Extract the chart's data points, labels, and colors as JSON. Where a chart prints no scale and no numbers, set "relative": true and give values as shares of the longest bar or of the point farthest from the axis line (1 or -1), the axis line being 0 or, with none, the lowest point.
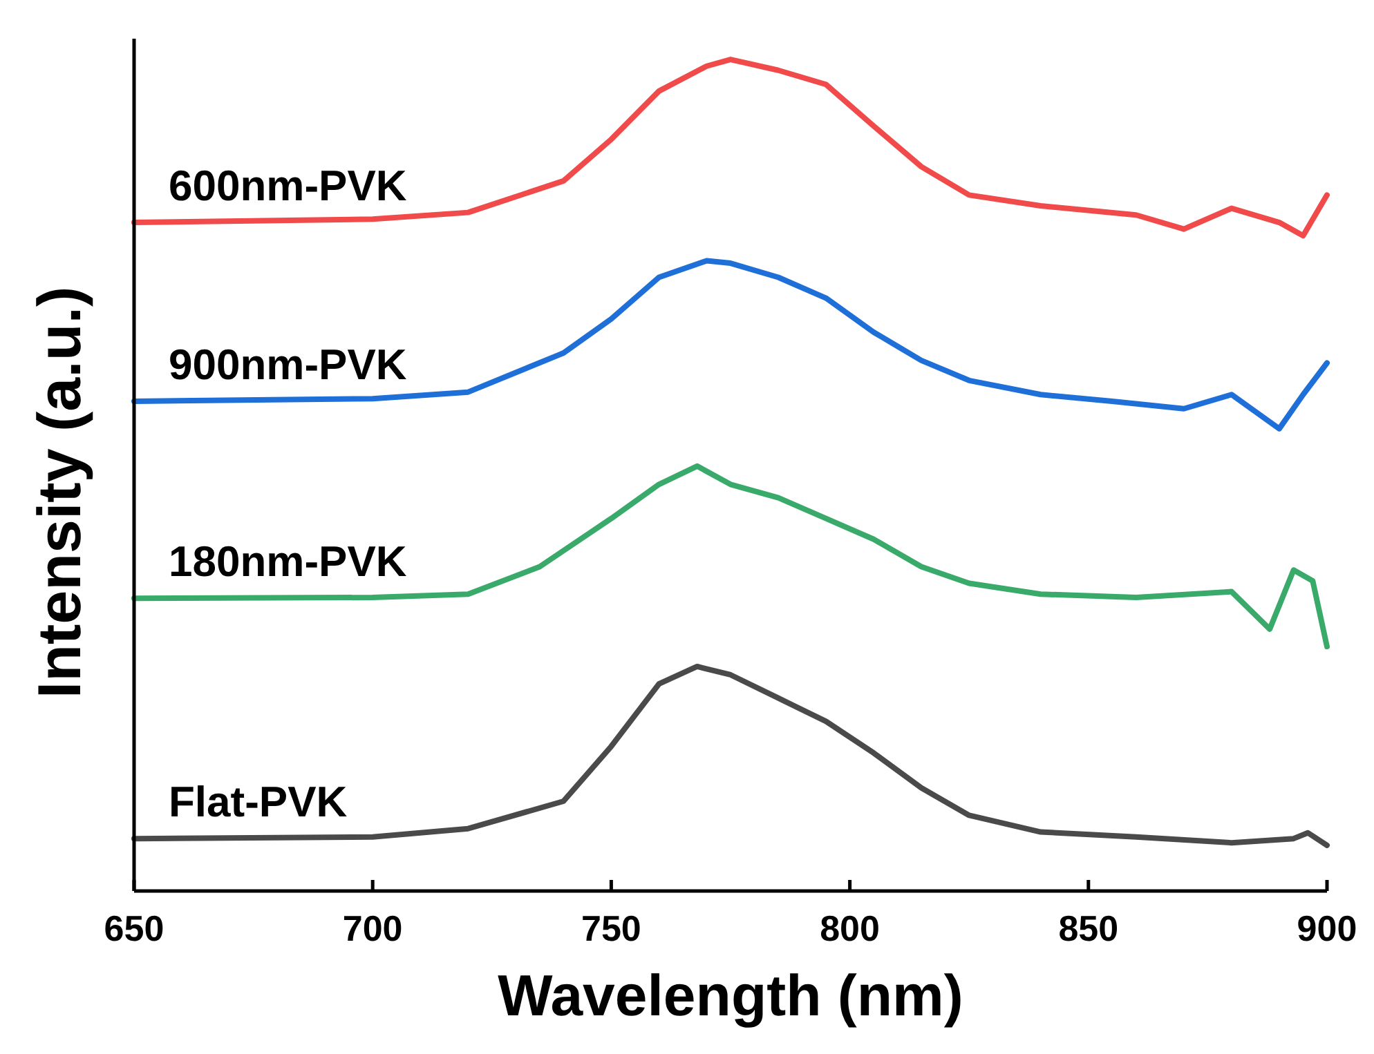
{
  "chart_data": {
    "type": "line",
    "relative": true,
    "xlabel": "Wavelength (nm)",
    "ylabel": "Intensity (a.u.)",
    "xlim": [
      650,
      900
    ],
    "xticks": [
      650,
      700,
      750,
      800,
      850,
      900
    ],
    "grid": false,
    "marker": "none",
    "line_style": "solid",
    "series": [
      {
        "name": "600nm-PVK",
        "color": "#f04a4a",
        "x": [
          650,
          700,
          720,
          740,
          750,
          760,
          770,
          775,
          785,
          795,
          805,
          815,
          825,
          840,
          860,
          870,
          880,
          890,
          895,
          900
        ],
        "values": [
          0.804,
          0.808,
          0.816,
          0.854,
          0.904,
          0.962,
          0.992,
          1.0,
          0.987,
          0.97,
          0.92,
          0.871,
          0.837,
          0.824,
          0.813,
          0.796,
          0.821,
          0.804,
          0.788,
          0.837
        ]
      },
      {
        "name": "900nm-PVK",
        "color": "#1f6fd8",
        "x": [
          650,
          700,
          720,
          740,
          750,
          760,
          770,
          775,
          785,
          795,
          805,
          815,
          825,
          840,
          855,
          870,
          880,
          890,
          895,
          900
        ],
        "values": [
          0.589,
          0.592,
          0.6,
          0.647,
          0.688,
          0.738,
          0.758,
          0.755,
          0.738,
          0.713,
          0.672,
          0.638,
          0.614,
          0.597,
          0.589,
          0.58,
          0.597,
          0.556,
          0.597,
          0.635
        ]
      },
      {
        "name": "180nm-PVK",
        "color": "#3aaa6a",
        "x": [
          650,
          700,
          720,
          735,
          750,
          760,
          768,
          775,
          785,
          795,
          805,
          815,
          825,
          840,
          860,
          880,
          888,
          893,
          897,
          900
        ],
        "values": [
          0.352,
          0.353,
          0.357,
          0.39,
          0.448,
          0.489,
          0.511,
          0.489,
          0.473,
          0.448,
          0.423,
          0.39,
          0.37,
          0.357,
          0.353,
          0.36,
          0.315,
          0.386,
          0.373,
          0.294
        ]
      },
      {
        "name": "Flat-PVK",
        "color": "#4a4a4a",
        "x": [
          650,
          700,
          720,
          740,
          750,
          760,
          768,
          775,
          785,
          795,
          805,
          815,
          825,
          840,
          860,
          880,
          893,
          896,
          900
        ],
        "values": [
          0.063,
          0.065,
          0.075,
          0.108,
          0.174,
          0.249,
          0.27,
          0.26,
          0.232,
          0.204,
          0.166,
          0.124,
          0.091,
          0.071,
          0.065,
          0.058,
          0.063,
          0.07,
          0.055
        ]
      }
    ]
  }
}
